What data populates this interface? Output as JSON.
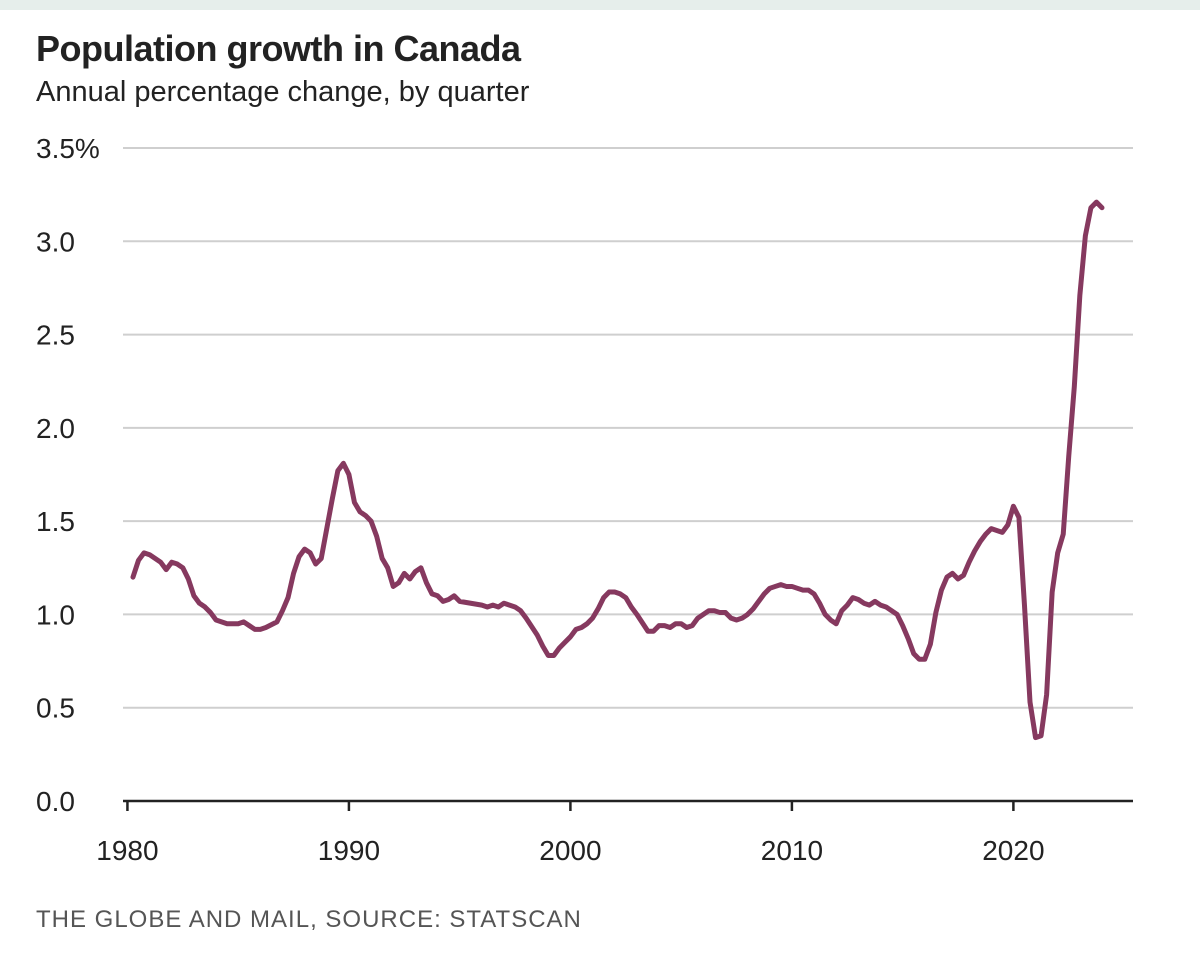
{
  "title": "Population growth in Canada",
  "subtitle": "Annual percentage change, by quarter",
  "source": "THE GLOBE AND MAIL, SOURCE: STATSCAN",
  "colors": {
    "line": "#86395f",
    "grid": "#cfcfcf",
    "axis": "#222222"
  },
  "chart_data": {
    "type": "line",
    "title": "Population growth in Canada",
    "subtitle": "Annual percentage change, by quarter",
    "xlabel": "",
    "ylabel": "",
    "xlim": [
      1979.8,
      2025.4
    ],
    "ylim": [
      0,
      3.5
    ],
    "grid": "horizontal",
    "x_ticks": [
      {
        "value": 1980,
        "label": "1980"
      },
      {
        "value": 1990,
        "label": "1990"
      },
      {
        "value": 2000,
        "label": "2000"
      },
      {
        "value": 2010,
        "label": "2010"
      },
      {
        "value": 2020,
        "label": "2020"
      }
    ],
    "y_ticks": [
      {
        "value": 0,
        "label": "0.0"
      },
      {
        "value": 0.5,
        "label": "0.5"
      },
      {
        "value": 1.0,
        "label": "1.0"
      },
      {
        "value": 1.5,
        "label": "1.5"
      },
      {
        "value": 2.0,
        "label": "2.0"
      },
      {
        "value": 2.5,
        "label": "2.5"
      },
      {
        "value": 3.0,
        "label": "3.0"
      },
      {
        "value": 3.5,
        "label": "3.5%"
      }
    ],
    "series": [
      {
        "points": [
          [
            1980.25,
            1.2
          ],
          [
            1980.5,
            1.29
          ],
          [
            1980.75,
            1.33
          ],
          [
            1981.0,
            1.32
          ],
          [
            1981.25,
            1.3
          ],
          [
            1981.5,
            1.28
          ],
          [
            1981.75,
            1.24
          ],
          [
            1982.0,
            1.28
          ],
          [
            1982.25,
            1.27
          ],
          [
            1982.5,
            1.25
          ],
          [
            1982.75,
            1.19
          ],
          [
            1983.0,
            1.1
          ],
          [
            1983.25,
            1.06
          ],
          [
            1983.5,
            1.04
          ],
          [
            1983.75,
            1.01
          ],
          [
            1984.0,
            0.97
          ],
          [
            1984.5,
            0.95
          ],
          [
            1985.0,
            0.95
          ],
          [
            1985.25,
            0.96
          ],
          [
            1985.5,
            0.94
          ],
          [
            1985.75,
            0.92
          ],
          [
            1986.0,
            0.92
          ],
          [
            1986.25,
            0.93
          ],
          [
            1986.75,
            0.96
          ],
          [
            1987.0,
            1.02
          ],
          [
            1987.25,
            1.09
          ],
          [
            1987.5,
            1.22
          ],
          [
            1987.75,
            1.31
          ],
          [
            1988.0,
            1.35
          ],
          [
            1988.25,
            1.33
          ],
          [
            1988.5,
            1.27
          ],
          [
            1988.75,
            1.3
          ],
          [
            1989.0,
            1.46
          ],
          [
            1989.25,
            1.62
          ],
          [
            1989.5,
            1.77
          ],
          [
            1989.75,
            1.81
          ],
          [
            1990.0,
            1.75
          ],
          [
            1990.25,
            1.6
          ],
          [
            1990.5,
            1.55
          ],
          [
            1990.75,
            1.53
          ],
          [
            1991.0,
            1.5
          ],
          [
            1991.25,
            1.42
          ],
          [
            1991.5,
            1.3
          ],
          [
            1991.75,
            1.25
          ],
          [
            1992.0,
            1.15
          ],
          [
            1992.25,
            1.17
          ],
          [
            1992.5,
            1.22
          ],
          [
            1992.75,
            1.19
          ],
          [
            1993.0,
            1.23
          ],
          [
            1993.25,
            1.25
          ],
          [
            1993.5,
            1.17
          ],
          [
            1993.75,
            1.11
          ],
          [
            1994.0,
            1.1
          ],
          [
            1994.25,
            1.07
          ],
          [
            1994.5,
            1.08
          ],
          [
            1994.75,
            1.1
          ],
          [
            1995.0,
            1.07
          ],
          [
            1995.5,
            1.06
          ],
          [
            1996.0,
            1.05
          ],
          [
            1996.25,
            1.04
          ],
          [
            1996.5,
            1.05
          ],
          [
            1996.75,
            1.04
          ],
          [
            1997.0,
            1.06
          ],
          [
            1997.25,
            1.05
          ],
          [
            1997.5,
            1.04
          ],
          [
            1997.75,
            1.02
          ],
          [
            1998.0,
            0.98
          ],
          [
            1998.5,
            0.89
          ],
          [
            1998.75,
            0.83
          ],
          [
            1999.0,
            0.78
          ],
          [
            1999.25,
            0.78
          ],
          [
            1999.5,
            0.82
          ],
          [
            1999.75,
            0.85
          ],
          [
            2000.0,
            0.88
          ],
          [
            2000.25,
            0.92
          ],
          [
            2000.5,
            0.93
          ],
          [
            2000.75,
            0.95
          ],
          [
            2001.0,
            0.98
          ],
          [
            2001.25,
            1.03
          ],
          [
            2001.5,
            1.09
          ],
          [
            2001.75,
            1.12
          ],
          [
            2002.0,
            1.12
          ],
          [
            2002.25,
            1.11
          ],
          [
            2002.5,
            1.09
          ],
          [
            2002.75,
            1.04
          ],
          [
            2003.0,
            1.0
          ],
          [
            2003.5,
            0.91
          ],
          [
            2003.75,
            0.91
          ],
          [
            2004.0,
            0.94
          ],
          [
            2004.25,
            0.94
          ],
          [
            2004.5,
            0.93
          ],
          [
            2004.75,
            0.95
          ],
          [
            2005.0,
            0.95
          ],
          [
            2005.25,
            0.93
          ],
          [
            2005.5,
            0.94
          ],
          [
            2005.75,
            0.98
          ],
          [
            2006.0,
            1.0
          ],
          [
            2006.25,
            1.02
          ],
          [
            2006.5,
            1.02
          ],
          [
            2006.75,
            1.01
          ],
          [
            2007.0,
            1.01
          ],
          [
            2007.25,
            0.98
          ],
          [
            2007.5,
            0.97
          ],
          [
            2007.75,
            0.98
          ],
          [
            2008.0,
            1.0
          ],
          [
            2008.25,
            1.03
          ],
          [
            2008.5,
            1.07
          ],
          [
            2008.75,
            1.11
          ],
          [
            2009.0,
            1.14
          ],
          [
            2009.25,
            1.15
          ],
          [
            2009.5,
            1.16
          ],
          [
            2009.75,
            1.15
          ],
          [
            2010.0,
            1.15
          ],
          [
            2010.25,
            1.14
          ],
          [
            2010.5,
            1.13
          ],
          [
            2010.75,
            1.13
          ],
          [
            2011.0,
            1.11
          ],
          [
            2011.25,
            1.06
          ],
          [
            2011.5,
            1.0
          ],
          [
            2011.75,
            0.97
          ],
          [
            2012.0,
            0.95
          ],
          [
            2012.25,
            1.02
          ],
          [
            2012.5,
            1.05
          ],
          [
            2012.75,
            1.09
          ],
          [
            2013.0,
            1.08
          ],
          [
            2013.25,
            1.06
          ],
          [
            2013.5,
            1.05
          ],
          [
            2013.75,
            1.07
          ],
          [
            2014.0,
            1.05
          ],
          [
            2014.25,
            1.04
          ],
          [
            2014.5,
            1.02
          ],
          [
            2014.75,
            1.0
          ],
          [
            2015.0,
            0.94
          ],
          [
            2015.25,
            0.87
          ],
          [
            2015.5,
            0.79
          ],
          [
            2015.75,
            0.76
          ],
          [
            2016.0,
            0.76
          ],
          [
            2016.25,
            0.84
          ],
          [
            2016.5,
            1.01
          ],
          [
            2016.75,
            1.13
          ],
          [
            2017.0,
            1.2
          ],
          [
            2017.25,
            1.22
          ],
          [
            2017.5,
            1.19
          ],
          [
            2017.75,
            1.21
          ],
          [
            2018.0,
            1.28
          ],
          [
            2018.25,
            1.34
          ],
          [
            2018.5,
            1.39
          ],
          [
            2018.75,
            1.43
          ],
          [
            2019.0,
            1.46
          ],
          [
            2019.25,
            1.45
          ],
          [
            2019.5,
            1.44
          ],
          [
            2019.75,
            1.48
          ],
          [
            2020.0,
            1.58
          ],
          [
            2020.25,
            1.52
          ],
          [
            2020.5,
            1.05
          ],
          [
            2020.75,
            0.53
          ],
          [
            2021.0,
            0.34
          ],
          [
            2021.25,
            0.35
          ],
          [
            2021.5,
            0.57
          ],
          [
            2021.75,
            1.12
          ],
          [
            2022.0,
            1.33
          ],
          [
            2022.25,
            1.43
          ],
          [
            2022.5,
            1.85
          ],
          [
            2022.75,
            2.22
          ],
          [
            2023.0,
            2.71
          ],
          [
            2023.25,
            3.03
          ],
          [
            2023.5,
            3.18
          ],
          [
            2023.75,
            3.21
          ],
          [
            2024.0,
            3.18
          ]
        ]
      }
    ]
  }
}
